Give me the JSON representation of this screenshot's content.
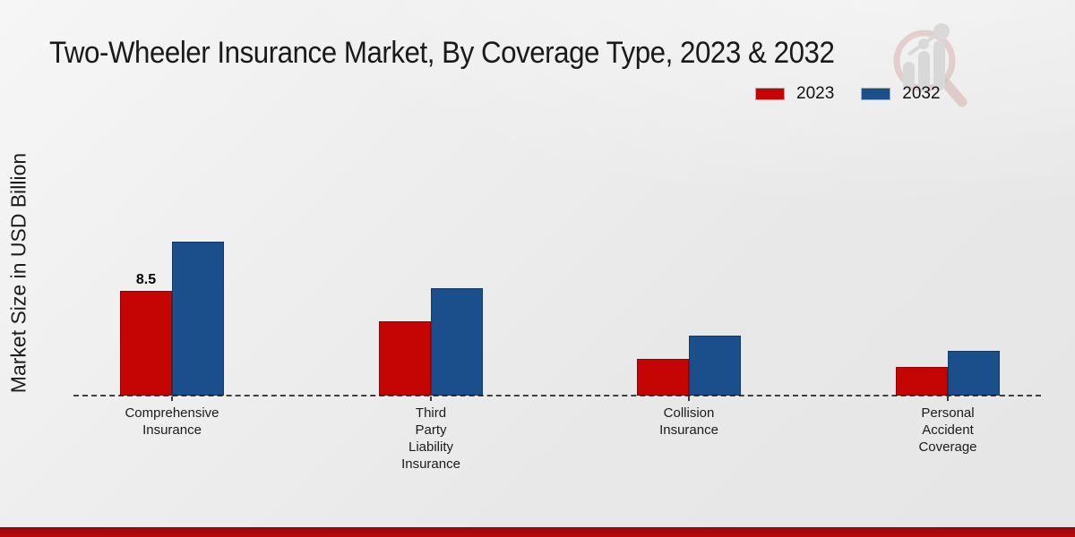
{
  "title": "Two-Wheeler Insurance Market, By Coverage Type, 2023 & 2032",
  "y_axis_label": "Market Size in USD Billion",
  "legend": {
    "position": "top-right",
    "items": [
      {
        "label": "2023",
        "color": "#c50404"
      },
      {
        "label": "2032",
        "color": "#1b4f8c"
      }
    ]
  },
  "logo": {
    "icon": "magnifier-bar-chart-watermark",
    "ring_color": "#cf9d9d",
    "bar_color": "#c6c6c6"
  },
  "footer_band": {
    "color_top": "#930909",
    "color_bottom": "#c50404"
  },
  "colors": {
    "background": "#ececec",
    "series_2023": "#c50404",
    "series_2032": "#1b4f8c",
    "axis_dash": "#141414",
    "text": "#1a1a1a"
  },
  "chart_data": {
    "type": "bar",
    "title": "Two-Wheeler Insurance Market, By Coverage Type, 2023 & 2032",
    "xlabel": "",
    "ylabel": "Market Size in USD Billion",
    "ylim": [
      0,
      13
    ],
    "grid": false,
    "legend_position": "top-right",
    "baseline": "dashed",
    "categories": [
      "Comprehensive Insurance",
      "Third Party Liability Insurance",
      "Collision Insurance",
      "Personal Accident Coverage"
    ],
    "category_lines": [
      [
        "Comprehensive",
        "Insurance"
      ],
      [
        "Third",
        "Party",
        "Liability",
        "Insurance"
      ],
      [
        "Collision",
        "Insurance"
      ],
      [
        "Personal",
        "Accident",
        "Coverage"
      ]
    ],
    "series": [
      {
        "name": "2023",
        "color": "#c50404",
        "values": [
          8.5,
          6.0,
          3.0,
          2.3
        ],
        "data_labels": [
          "8.5",
          "",
          "",
          ""
        ]
      },
      {
        "name": "2032",
        "color": "#1b4f8c",
        "values": [
          12.5,
          8.7,
          4.9,
          3.6
        ],
        "data_labels": [
          "",
          "",
          "",
          ""
        ]
      }
    ]
  }
}
